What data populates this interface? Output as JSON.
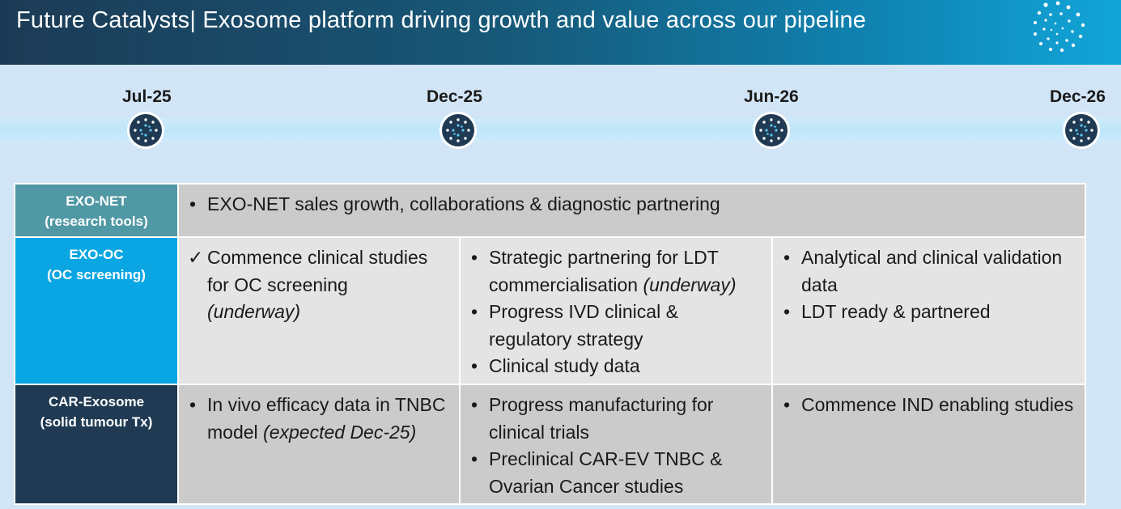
{
  "header": {
    "title": "Future Catalysts| Exosome platform driving growth and value across our pipeline"
  },
  "timeline": {
    "dates": [
      "Jul-25",
      "Dec-25",
      "Jun-26",
      "Dec-26"
    ]
  },
  "rows": [
    {
      "title": "EXO-NET",
      "subtitle": "(research tools)",
      "span_text": "EXO-NET sales growth, collaborations & diagnostic partnering"
    },
    {
      "title": "EXO-OC",
      "subtitle": "(OC screening)",
      "col1": {
        "text": "Commence clinical studies for OC screening",
        "note": "(underway)"
      },
      "col2": [
        {
          "text": "Strategic partnering for LDT commercialisation",
          "note": "(underway)"
        },
        {
          "text": "Progress IVD clinical & regulatory strategy"
        },
        {
          "text": "Clinical study data"
        }
      ],
      "col3": [
        {
          "text": "Analytical and clinical validation data"
        },
        {
          "text": "LDT ready & partnered"
        }
      ]
    },
    {
      "title": "CAR-Exosome",
      "subtitle": "(solid tumour Tx)",
      "col1": {
        "text": "In vivo efficacy data in TNBC model",
        "note": "(expected Dec-25)"
      },
      "col2": [
        {
          "text": "Progress manufacturing for clinical trials"
        },
        {
          "text": "Preclinical CAR-EV TNBC & Ovarian Cancer studies"
        }
      ],
      "col3": [
        {
          "text": "Commence IND enabling studies"
        }
      ]
    }
  ]
}
